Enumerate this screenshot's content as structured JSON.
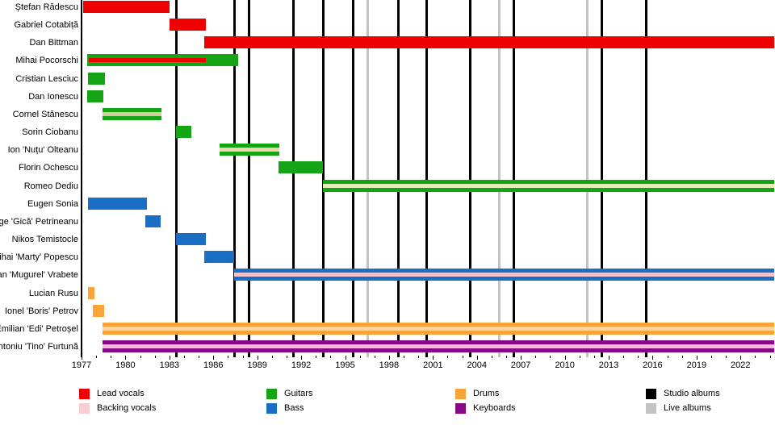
{
  "chart_data": {
    "type": "gantt",
    "description": "Band members timeline with membership bars by instrument role and vertical album release lines",
    "axis": {
      "start_year": 1977,
      "end_year": 2024.3,
      "major_tick_interval": 3,
      "minor_tick_interval": 1,
      "tick_labels": [
        "1977",
        "1980",
        "1983",
        "1986",
        "1989",
        "1992",
        "1995",
        "1998",
        "2001",
        "2004",
        "2007",
        "2010",
        "2013",
        "2016",
        "2019",
        "2022"
      ]
    },
    "colors": {
      "lead": "#ee0000",
      "backing": "#f9cdd6",
      "guitars": "#14a414",
      "bass": "#1a6ec4",
      "drums": "#f8a436",
      "keyboards": "#850885",
      "studio": "#000000",
      "live": "#c3c3c3",
      "backing_on_green_tan": "#d7cc9b",
      "backing_on_green_peach": "#f0d6ae",
      "backing_on_green_pale": "#e4ebbd",
      "backing_on_blue": "#f6c3cd",
      "backing_on_orange": "#fdd3a2",
      "backing_on_purple": "#f9b8d9"
    },
    "rows": [
      {
        "name": "Ștefan Rădescu",
        "segments": [
          {
            "start": 1977.1,
            "end": 1983.0,
            "color_key": "lead"
          }
        ]
      },
      {
        "name": "Gabriel Cotabiță",
        "segments": [
          {
            "start": 1983.0,
            "end": 1985.5,
            "color_key": "lead"
          }
        ]
      },
      {
        "name": "Dan Bittman",
        "segments": [
          {
            "start": 1985.4,
            "end": 2024.3,
            "color_key": "lead"
          }
        ]
      },
      {
        "name": "Mihai Pocorschi",
        "segments": [
          {
            "start": 1977.4,
            "end": 1987.7,
            "color_key": "guitars",
            "stripe": {
              "start": 1977.5,
              "end": 1985.5,
              "color_key": "lead"
            }
          }
        ]
      },
      {
        "name": "Cristian Lesciuc",
        "segments": [
          {
            "start": 1977.45,
            "end": 1978.6,
            "color_key": "guitars"
          }
        ]
      },
      {
        "name": "Dan Ionescu",
        "segments": [
          {
            "start": 1977.4,
            "end": 1978.5,
            "color_key": "guitars"
          }
        ]
      },
      {
        "name": "Cornel Stănescu",
        "segments": [
          {
            "start": 1978.45,
            "end": 1982.45,
            "color_key": "guitars",
            "stripe": {
              "start": 1978.45,
              "end": 1982.45,
              "color_key": "backing_on_green_tan"
            }
          }
        ]
      },
      {
        "name": "Sorin Ciobanu",
        "segments": [
          {
            "start": 1983.45,
            "end": 1984.5,
            "color_key": "guitars"
          }
        ]
      },
      {
        "name": "Ion 'Nuțu' Olteanu",
        "segments": [
          {
            "start": 1986.45,
            "end": 1990.5,
            "color_key": "guitars",
            "stripe": {
              "start": 1986.45,
              "end": 1990.5,
              "color_key": "backing_on_green_peach"
            }
          }
        ]
      },
      {
        "name": "Florin Ochescu",
        "segments": [
          {
            "start": 1990.45,
            "end": 1993.5,
            "color_key": "guitars"
          }
        ]
      },
      {
        "name": "Romeo Dediu",
        "segments": [
          {
            "start": 1993.5,
            "end": 2024.3,
            "color_key": "guitars",
            "stripe": {
              "start": 1993.5,
              "end": 2024.3,
              "color_key": "backing_on_green_pale"
            }
          }
        ]
      },
      {
        "name": "Eugen Sonia",
        "segments": [
          {
            "start": 1977.45,
            "end": 1981.45,
            "color_key": "bass"
          }
        ]
      },
      {
        "name": "George 'Gică' Petrineanu",
        "segments": [
          {
            "start": 1981.35,
            "end": 1982.4,
            "color_key": "bass"
          }
        ]
      },
      {
        "name": "Nikos Temistocle",
        "segments": [
          {
            "start": 1983.45,
            "end": 1985.5,
            "color_key": "bass"
          }
        ]
      },
      {
        "name": "Mihai 'Marty' Popescu",
        "segments": [
          {
            "start": 1985.4,
            "end": 1987.4,
            "color_key": "bass"
          }
        ]
      },
      {
        "name": "Iulian 'Mugurel' Vrabete",
        "segments": [
          {
            "start": 1987.4,
            "end": 2024.3,
            "color_key": "bass",
            "stripe": {
              "start": 1987.4,
              "end": 2024.3,
              "color_key": "backing_on_blue"
            }
          }
        ]
      },
      {
        "name": "Lucian Rusu",
        "segments": [
          {
            "start": 1977.45,
            "end": 1977.9,
            "color_key": "drums"
          }
        ]
      },
      {
        "name": "Ionel 'Boris' Petrov",
        "segments": [
          {
            "start": 1977.75,
            "end": 1978.55,
            "color_key": "drums"
          }
        ]
      },
      {
        "name": "Emilian 'Edi' Petroșel",
        "segments": [
          {
            "start": 1978.45,
            "end": 2024.3,
            "color_key": "drums",
            "stripe": {
              "start": 1978.45,
              "end": 2024.3,
              "color_key": "backing_on_orange"
            }
          }
        ]
      },
      {
        "name": "Antoniu 'Tino' Furtună",
        "segments": [
          {
            "start": 1978.45,
            "end": 2024.3,
            "color_key": "keyboards",
            "stripe": {
              "start": 1978.45,
              "end": 2024.3,
              "color_key": "backing_on_purple"
            }
          }
        ]
      }
    ],
    "album_lines": {
      "studio": [
        1983.45,
        1987.4,
        1988.4,
        1991.45,
        1993.5,
        1995.5,
        1998.6,
        2000.55,
        2003.5,
        2006.5,
        2012.5,
        2015.55
      ],
      "live": [
        1996.5,
        2005.5,
        2011.5
      ]
    },
    "legend": [
      {
        "label": "Lead vocals",
        "color_key": "lead"
      },
      {
        "label": "Backing vocals",
        "color_key": "backing"
      },
      {
        "label": "Guitars",
        "color_key": "guitars"
      },
      {
        "label": "Bass",
        "color_key": "bass"
      },
      {
        "label": "Drums",
        "color_key": "drums"
      },
      {
        "label": "Keyboards",
        "color_key": "keyboards"
      },
      {
        "label": "Studio albums",
        "color_key": "studio"
      },
      {
        "label": "Live albums",
        "color_key": "live"
      }
    ]
  }
}
